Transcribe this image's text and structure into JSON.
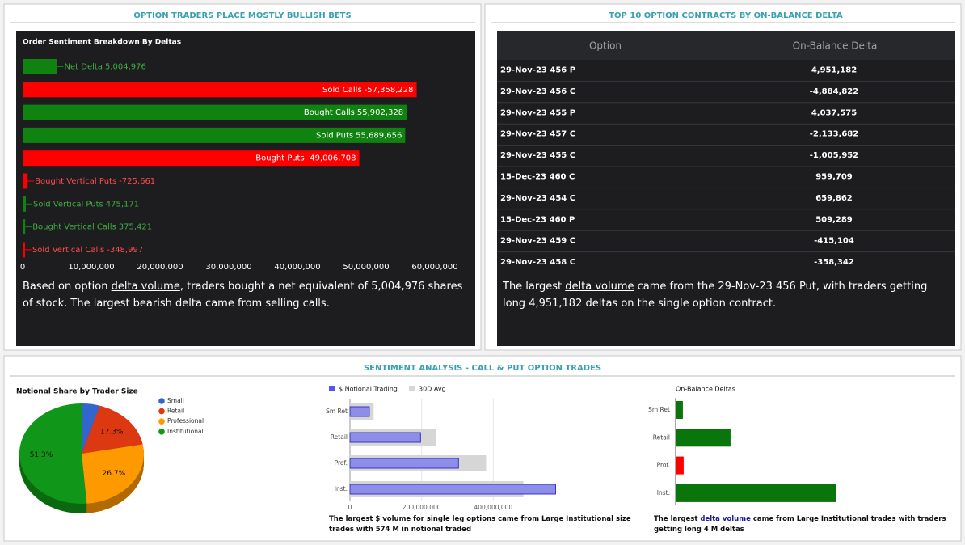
{
  "left_panel": {
    "title": "OPTION TRADERS PLACE MOSTLY BULLISH BETS",
    "summary": {
      "before": "Based on option ",
      "link": "delta volume",
      "after": ", traders bought a net equivalent of 5,004,976 shares of stock. The largest bearish delta came from selling calls."
    }
  },
  "right_panel": {
    "title": "TOP 10 OPTION CONTRACTS BY ON-BALANCE DELTA",
    "table": {
      "columns": [
        "Option",
        "On-Balance Delta"
      ],
      "rows": [
        [
          "29-Nov-23 456 P",
          "4,951,182"
        ],
        [
          "29-Nov-23 456 C",
          "-4,884,822"
        ],
        [
          "29-Nov-23 455 P",
          "4,037,575"
        ],
        [
          "29-Nov-23 457 C",
          "-2,133,682"
        ],
        [
          "29-Nov-23 455 C",
          "-1,005,952"
        ],
        [
          "15-Dec-23 460 C",
          "959,709"
        ],
        [
          "29-Nov-23 454 C",
          "659,862"
        ],
        [
          "15-Dec-23 460 P",
          "509,289"
        ],
        [
          "29-Nov-23 459 C",
          "-415,104"
        ],
        [
          "29-Nov-23 458 C",
          "-358,342"
        ]
      ]
    },
    "summary": {
      "before": "The largest ",
      "link": "delta volume",
      "after": " came from the 29-Nov-23 456 Put, with traders getting long 4,951,182 deltas on the single option contract."
    }
  },
  "bottom_panel": {
    "title": "SENTIMENT ANALYSIS - CALL & PUT OPTION TRADES",
    "notional_caption": "The largest $ volume for single leg options came from Large Institutional size trades with 574 M in notional traded",
    "delta_caption": {
      "before": "The largest ",
      "link": "delta volume",
      "after": " came from Large Institutional trades with traders getting long 4 M deltas"
    }
  },
  "chart_data": [
    {
      "type": "bar",
      "orientation": "horizontal",
      "title": "Order Sentiment Breakdown By Deltas",
      "categories": [
        "Net Delta",
        "Sold Calls",
        "Bought Calls",
        "Sold Puts",
        "Bought Puts",
        "Bought Vertical Puts",
        "Sold Vertical Puts",
        "Bought Vertical Calls",
        "Sold Vertical Calls"
      ],
      "values": [
        5004976,
        -57358228,
        55902328,
        55689656,
        -49006708,
        -725661,
        475171,
        375421,
        -348997
      ],
      "value_labels": [
        "5,004,976",
        "-57,358,228",
        "55,902,328",
        "55,689,656",
        "-49,006,708",
        "-725,661",
        "475,171",
        "375,421",
        "-348,997"
      ],
      "colors": [
        "#0f820f",
        "#ff0000",
        "#0f820f",
        "#0f820f",
        "#ff0000",
        "#ff0000",
        "#0f820f",
        "#0f820f",
        "#ff0000"
      ],
      "xlim": [
        0,
        60000000
      ],
      "xticks": [
        0,
        {
          "value": 10000000,
          "label": "10,000,000"
        },
        {
          "value": 20000000,
          "label": "20,000,000"
        },
        {
          "value": 30000000,
          "label": "30,000,000"
        },
        {
          "value": 40000000,
          "label": "40,000,000"
        },
        {
          "value": 50000000,
          "label": "50,000,000"
        },
        {
          "value": 60000000,
          "label": "60,000,000"
        }
      ]
    },
    {
      "type": "pie",
      "title": "Notional Share by Trader Size",
      "categories": [
        "Small",
        "Retail",
        "Professional",
        "Institutional"
      ],
      "values": [
        4.7,
        17.3,
        26.7,
        51.3
      ],
      "value_labels": [
        null,
        "17.3%",
        "26.7%",
        "51.3%"
      ],
      "colors": [
        "#3366cc",
        "#dc3912",
        "#ff9900",
        "#109618"
      ],
      "legend": "right"
    },
    {
      "type": "bar",
      "orientation": "horizontal",
      "categories": [
        "Sm Ret",
        "Retail",
        "Prof.",
        "Inst."
      ],
      "series": [
        {
          "name": "$ Notional Trading",
          "color": "#8e8ee8",
          "values": [
            54000000,
            197000000,
            303000000,
            574000000
          ]
        },
        {
          "name": "30D Avg",
          "color": "#d6d6d6",
          "values": [
            66000000,
            240000000,
            380000000,
            484000000
          ]
        }
      ],
      "xlim": [
        0,
        600000000
      ],
      "xticks": [
        0,
        {
          "value": 200000000,
          "label": "200,000,000"
        },
        {
          "value": 400000000,
          "label": "400,000,000"
        }
      ],
      "legend": "top-left"
    },
    {
      "type": "bar",
      "orientation": "horizontal",
      "title": "On-Balance Deltas",
      "categories": [
        "Sm Ret",
        "Retail",
        "Prof.",
        "Inst."
      ],
      "values": [
        180000,
        1370000,
        -200000,
        4000000
      ],
      "colors": [
        "#0a750a",
        "#0a750a",
        "#ff0000",
        "#0a750a"
      ],
      "xlim": [
        0,
        4800000
      ]
    }
  ]
}
